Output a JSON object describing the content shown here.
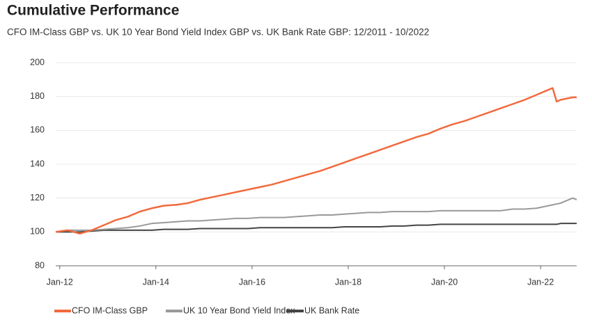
{
  "chart_data": {
    "type": "line",
    "title": "Cumulative Performance",
    "subtitle": "CFO IM-Class GBP vs. UK 10 Year Bond Yield Index GBP vs. UK Bank Rate GBP: 12/2011 - 10/2022",
    "x": [
      "2011-12",
      "2012-03",
      "2012-06",
      "2012-09",
      "2012-12",
      "2013-03",
      "2013-06",
      "2013-09",
      "2013-12",
      "2014-03",
      "2014-06",
      "2014-09",
      "2014-12",
      "2015-03",
      "2015-06",
      "2015-09",
      "2015-12",
      "2016-03",
      "2016-06",
      "2016-09",
      "2016-12",
      "2017-03",
      "2017-06",
      "2017-09",
      "2017-12",
      "2018-03",
      "2018-06",
      "2018-09",
      "2018-12",
      "2019-03",
      "2019-06",
      "2019-09",
      "2019-12",
      "2020-03",
      "2020-06",
      "2020-09",
      "2020-12",
      "2021-03",
      "2021-06",
      "2021-09",
      "2021-12",
      "2022-03",
      "2022-04",
      "2022-05",
      "2022-06",
      "2022-09",
      "2022-10"
    ],
    "series": [
      {
        "name": "CFO IM-Class GBP",
        "color": "#f26a3d",
        "values": [
          100,
          101,
          99,
          101,
          104,
          107,
          109,
          112,
          114,
          115.5,
          116,
          117,
          119,
          120.5,
          122,
          123.5,
          125,
          126.5,
          128,
          130,
          132,
          134,
          136,
          138.5,
          141,
          143.5,
          146,
          148.5,
          151,
          153.5,
          156,
          158,
          161,
          163.5,
          165.5,
          168,
          170.5,
          173,
          175.5,
          178,
          181,
          184,
          185,
          177,
          178,
          179.5,
          179.5
        ]
      },
      {
        "name": "UK 10 Year Bond Yield Index",
        "color": "#999999",
        "values": [
          100,
          101,
          101,
          101,
          101.5,
          102,
          102.5,
          103.5,
          105,
          105.5,
          106,
          106.5,
          106.5,
          107,
          107.5,
          108,
          108,
          108.5,
          108.5,
          108.5,
          109,
          109.5,
          110,
          110,
          110.5,
          111,
          111.5,
          111.5,
          112,
          112,
          112,
          112,
          112.5,
          112.5,
          112.5,
          112.5,
          112.5,
          112.5,
          113.5,
          113.5,
          114,
          115.5,
          116,
          116.5,
          117,
          120,
          119
        ]
      },
      {
        "name": "UK Bank Rate",
        "color": "#444444",
        "values": [
          100,
          100,
          100,
          100.5,
          101,
          101,
          101,
          101,
          101,
          101.5,
          101.5,
          101.5,
          102,
          102,
          102,
          102,
          102,
          102.5,
          102.5,
          102.5,
          102.5,
          102.5,
          102.5,
          102.5,
          103,
          103,
          103,
          103,
          103.5,
          103.5,
          104,
          104,
          104.5,
          104.5,
          104.5,
          104.5,
          104.5,
          104.5,
          104.5,
          104.5,
          104.5,
          104.5,
          104.5,
          104.5,
          105,
          105,
          105
        ]
      }
    ],
    "xlim": [
      "2011-12",
      "2022-10"
    ],
    "xticks": [
      {
        "value": "2012-01",
        "label": "Jan-12"
      },
      {
        "value": "2014-01",
        "label": "Jan-14"
      },
      {
        "value": "2016-01",
        "label": "Jan-16"
      },
      {
        "value": "2018-01",
        "label": "Jan-18"
      },
      {
        "value": "2020-01",
        "label": "Jan-20"
      },
      {
        "value": "2022-01",
        "label": "Jan-22"
      }
    ],
    "ylim": [
      80,
      200
    ],
    "yticks": [
      80,
      100,
      120,
      140,
      160,
      180,
      200
    ],
    "grid": true
  }
}
